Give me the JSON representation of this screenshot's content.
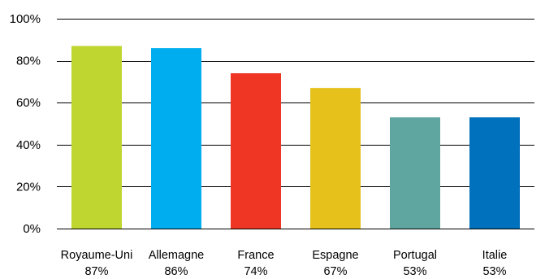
{
  "chart_data": {
    "type": "bar",
    "categories": [
      "Royaume-Uni",
      "Allemagne",
      "France",
      "Espagne",
      "Portugal",
      "Italie"
    ],
    "values": [
      87,
      86,
      74,
      67,
      53,
      53
    ],
    "value_labels": [
      "87%",
      "86%",
      "74%",
      "67%",
      "53%",
      "53%"
    ],
    "bar_colors": [
      "#bfd630",
      "#00aeef",
      "#ef3524",
      "#e6c11b",
      "#5fa6a1",
      "#0071bc"
    ],
    "ylim": [
      0,
      100
    ],
    "yticks": [
      0,
      20,
      40,
      60,
      80,
      100
    ],
    "ytick_labels": [
      "0%",
      "20%",
      "40%",
      "60%",
      "80%",
      "100%"
    ],
    "grid": true,
    "gridline_color": "#000000"
  }
}
